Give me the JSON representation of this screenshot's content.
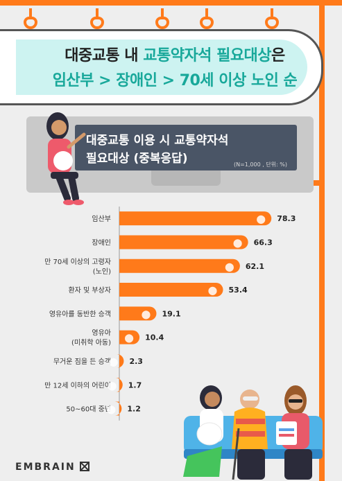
{
  "header": {
    "title_line1_a": "대중교통 내 ",
    "title_line1_b": "교통약자석 필요대상",
    "title_line1_c": "은",
    "title_line2": "임산부 > 장애인 > 70세 이상 노인 순"
  },
  "screen": {
    "line1": "대중교통 이용 시 교통약자석",
    "line2": "필요대상 (중복응답)",
    "note": "(N=1,000 , 단위: %)"
  },
  "brand": "EMBRAIN",
  "colors": {
    "bar": "#ff7a1a",
    "accent": "#18a89a",
    "title_bg": "#cdf3f1",
    "screen": "#4a5566"
  },
  "chart_data": {
    "type": "bar",
    "orientation": "horizontal",
    "categories": [
      [
        "임산부"
      ],
      [
        "장애인"
      ],
      [
        "만 70세 이상의 고령자",
        "(노인)"
      ],
      [
        "환자 및 부상자"
      ],
      [
        "영유아를 동반한 승객"
      ],
      [
        "영유아",
        "(미취학 아동)"
      ],
      [
        "무거운 짐을 든 승객"
      ],
      [
        "만 12세 이하의 어린이"
      ],
      [
        "50~60대 중년"
      ]
    ],
    "values": [
      78.3,
      66.3,
      62.1,
      53.4,
      19.1,
      10.4,
      2.3,
      1.7,
      1.2
    ],
    "value_labels": [
      "78.3",
      "66.3",
      "62.1",
      "53.4",
      "19.1",
      "10.4",
      "2.3",
      "1.7",
      "1.2"
    ],
    "icons": [
      "pregnant-icon",
      "wheelchair-icon",
      "elderly-icon",
      "injured-icon",
      "stroller-icon",
      "child-icon",
      "luggage-icon",
      "child-icon",
      "person-icon"
    ],
    "xlim": [
      0,
      80
    ],
    "grid": false
  }
}
